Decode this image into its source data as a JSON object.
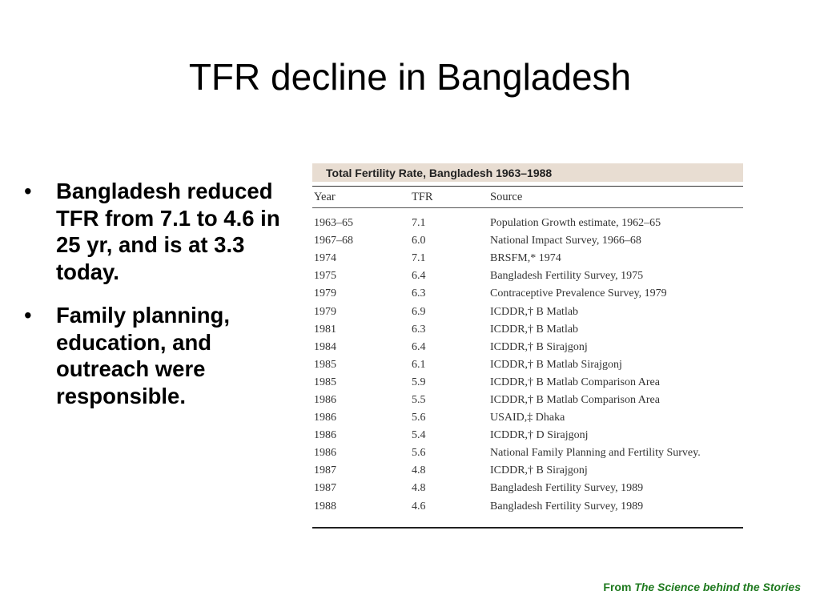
{
  "slide": {
    "title": "TFR decline in Bangladesh",
    "bullets": [
      "Bangladesh reduced TFR from 7.1 to 4.6 in 25 yr, and is at 3.3 today.",
      "Family planning, education, and outreach were responsible."
    ],
    "credit_prefix": "From",
    "credit_source": "The Science behind the Stories"
  },
  "table": {
    "caption": "Total Fertility Rate, Bangladesh 1963–1988",
    "headers": [
      "Year",
      "TFR",
      "Source"
    ],
    "rows": [
      [
        "1963–65",
        "7.1",
        "Population Growth estimate, 1962–65"
      ],
      [
        "1967–68",
        "6.0",
        "National Impact Survey, 1966–68"
      ],
      [
        "1974",
        "7.1",
        "BRSFM,* 1974"
      ],
      [
        "1975",
        "6.4",
        "Bangladesh Fertility Survey, 1975"
      ],
      [
        "1979",
        "6.3",
        "Contraceptive Prevalence Survey, 1979"
      ],
      [
        "1979",
        "6.9",
        "ICDDR,† B Matlab"
      ],
      [
        "1981",
        "6.3",
        "ICDDR,† B Matlab"
      ],
      [
        "1984",
        "6.4",
        "ICDDR,† B Sirajgonj"
      ],
      [
        "1985",
        "6.1",
        "ICDDR,† B Matlab Sirajgonj"
      ],
      [
        "1985",
        "5.9",
        "ICDDR,† B Matlab Comparison Area"
      ],
      [
        "1986",
        "5.5",
        "ICDDR,† B Matlab Comparison Area"
      ],
      [
        "1986",
        "5.6",
        "USAID,‡ Dhaka"
      ],
      [
        "1986",
        "5.4",
        "ICDDR,† D Sirajgonj"
      ],
      [
        "1986",
        "5.6",
        "National Family Planning and Fertility Survey."
      ],
      [
        "1987",
        "4.8",
        "ICDDR,† B Sirajgonj"
      ],
      [
        "1987",
        "4.8",
        "Bangladesh Fertility Survey, 1989"
      ],
      [
        "1988",
        "4.6",
        "Bangladesh Fertility Survey, 1989"
      ]
    ]
  }
}
